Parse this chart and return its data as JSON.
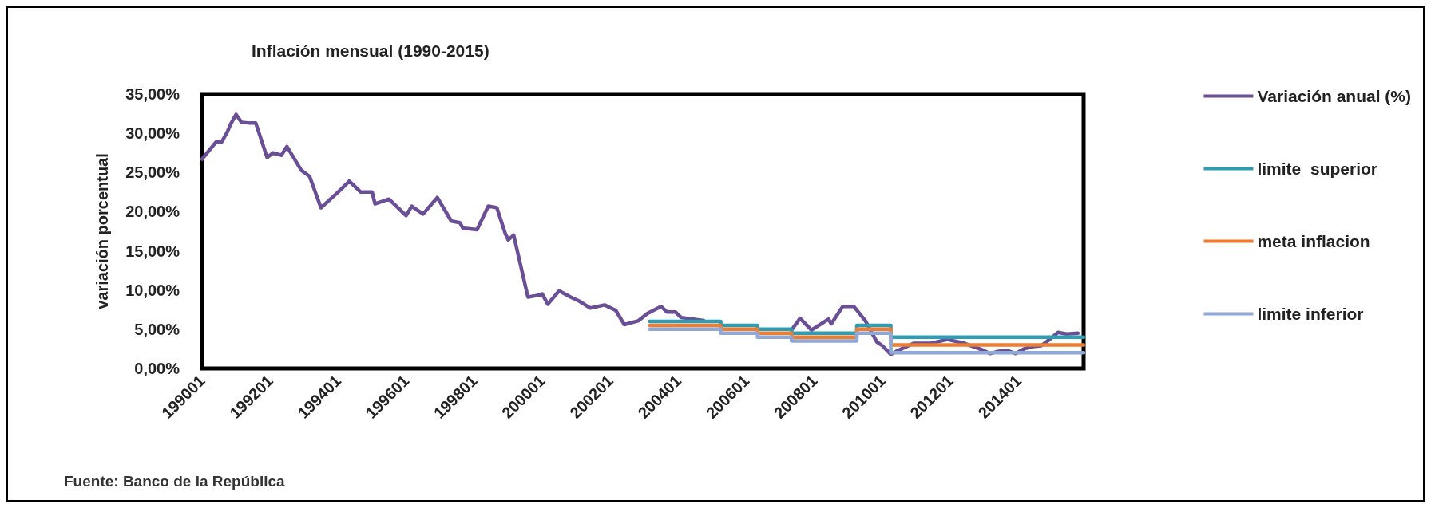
{
  "chart_data": {
    "type": "line",
    "title": "Inflación mensual (1990-2015)",
    "ylabel": "variación porcentual",
    "annotations": [
      "Fuente: Banco de la República"
    ],
    "xlim": [
      "1990-01",
      "2015-12"
    ],
    "xticks": [
      {
        "value": "1990-01",
        "label": "199001"
      },
      {
        "value": "1992-01",
        "label": "199201"
      },
      {
        "value": "1994-01",
        "label": "199401"
      },
      {
        "value": "1996-01",
        "label": "199601"
      },
      {
        "value": "1998-01",
        "label": "199801"
      },
      {
        "value": "2000-01",
        "label": "200001"
      },
      {
        "value": "2002-01",
        "label": "200201"
      },
      {
        "value": "2004-01",
        "label": "200401"
      },
      {
        "value": "2006-01",
        "label": "200601"
      },
      {
        "value": "2008-01",
        "label": "200801"
      },
      {
        "value": "2010-01",
        "label": "201001"
      },
      {
        "value": "2012-01",
        "label": "201201"
      },
      {
        "value": "2014-01",
        "label": "201401"
      }
    ],
    "ylim": [
      0,
      35
    ],
    "yticks": [
      {
        "value": 0,
        "label": "0,00%"
      },
      {
        "value": 5,
        "label": "5,00%"
      },
      {
        "value": 10,
        "label": "10,00%"
      },
      {
        "value": 15,
        "label": "15,00%"
      },
      {
        "value": 20,
        "label": "20,00%"
      },
      {
        "value": 25,
        "label": "25,00%"
      },
      {
        "value": 30,
        "label": "30,00%"
      },
      {
        "value": 35,
        "label": "35,00%"
      }
    ],
    "grid": false,
    "legend": "right",
    "marker": "none",
    "line_style": "solid",
    "series": [
      {
        "name": "Variación anual (%)",
        "color": "#6b4f96",
        "x": [
          "1990-01",
          "1990-06",
          "1990-08",
          "1990-10",
          "1990-11",
          "1991-01",
          "1991-03",
          "1991-06",
          "1991-08",
          "1991-12",
          "1992-02",
          "1992-05",
          "1992-07",
          "1992-12",
          "1993-03",
          "1993-07",
          "1994-01",
          "1994-05",
          "1994-09",
          "1995-01",
          "1995-02",
          "1995-07",
          "1996-01",
          "1996-03",
          "1996-07",
          "1996-12",
          "1997-05",
          "1997-08",
          "1997-09",
          "1998-02",
          "1998-06",
          "1998-09",
          "1998-12",
          "1999-01",
          "1999-03",
          "1999-08",
          "1999-11",
          "2000-01",
          "2000-03",
          "2000-07",
          "2000-11",
          "2001-02",
          "2001-06",
          "2001-11",
          "2002-03",
          "2002-06",
          "2002-11",
          "2003-02",
          "2003-07",
          "2003-09",
          "2003-12",
          "2004-02",
          "2004-10",
          "2004-11",
          "2007-04",
          "2007-05",
          "2007-08",
          "2007-12",
          "2008-06",
          "2008-07",
          "2008-11",
          "2009-03",
          "2009-07",
          "2009-11",
          "2010-01",
          "2010-04",
          "2010-06",
          "2010-12",
          "2011-06",
          "2011-12",
          "2012-06",
          "2012-12",
          "2013-03",
          "2013-06",
          "2013-09",
          "2013-12",
          "2014-03",
          "2014-06",
          "2014-09",
          "2014-12",
          "2015-03",
          "2015-06",
          "2015-10"
        ],
        "values": [
          26.7,
          28.9,
          28.9,
          30.2,
          31.1,
          32.4,
          31.4,
          31.3,
          31.3,
          26.9,
          27.5,
          27.2,
          28.3,
          25.3,
          24.5,
          20.5,
          22.5,
          23.9,
          22.5,
          22.5,
          21,
          21.6,
          19.5,
          20.7,
          19.7,
          21.8,
          18.8,
          18.6,
          17.9,
          17.7,
          20.7,
          20.5,
          17.2,
          16.4,
          17,
          9.1,
          9.3,
          9.5,
          8.2,
          9.9,
          9.1,
          8.6,
          7.7,
          8.1,
          7.4,
          5.6,
          6.1,
          7,
          7.9,
          7.2,
          7.2,
          6.5,
          6.1,
          null,
          null,
          4.9,
          6.4,
          4.9,
          6.3,
          5.7,
          7.9,
          7.9,
          6.1,
          3.4,
          2.9,
          1.8,
          2.2,
          3.2,
          3.2,
          3.7,
          3.2,
          2.4,
          1.9,
          2.2,
          2.3,
          1.9,
          2.5,
          2.8,
          2.9,
          3.7,
          4.6,
          4.4,
          4.5
        ]
      },
      {
        "name": "limite  superior",
        "type": "step",
        "color": "#2e9db4",
        "x": [
          "2003-03",
          "2005-04",
          "2006-05",
          "2007-05",
          "2009-04",
          "2010-04",
          "2015-12"
        ],
        "values": [
          6,
          5.5,
          5,
          4.5,
          5.5,
          4,
          4
        ]
      },
      {
        "name": "meta inflacion",
        "type": "step",
        "color": "#ed7d31",
        "x": [
          "2003-03",
          "2005-04",
          "2006-05",
          "2007-05",
          "2009-04",
          "2010-04",
          "2015-12"
        ],
        "values": [
          5.5,
          5,
          4.5,
          4,
          5,
          3,
          3
        ]
      },
      {
        "name": "limite inferior",
        "type": "step",
        "color": "#8fa8d8",
        "x": [
          "2003-03",
          "2005-04",
          "2006-05",
          "2007-05",
          "2009-04",
          "2010-04",
          "2015-12"
        ],
        "values": [
          5,
          4.5,
          4,
          3.5,
          4.5,
          2,
          2
        ]
      }
    ]
  }
}
